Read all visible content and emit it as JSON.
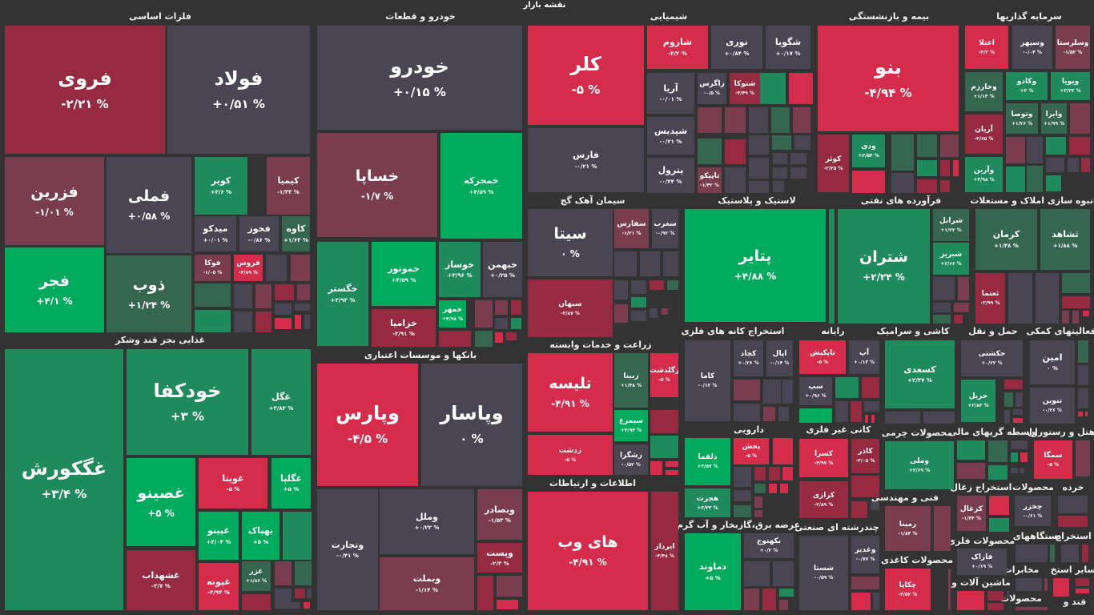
{
  "title": "نقشه بازار",
  "colors": {
    "g3": "#00ab5e",
    "g2": "#1f8a5c",
    "g1": "#356650",
    "n": "#4a4552",
    "r1": "#7a3d4f",
    "r2": "#962a41",
    "r3": "#d52c4b"
  },
  "sectors": [
    "فلزات اساسی",
    "غذایی بجز قند وشکر",
    "خودرو و قطعات",
    "بانکها و موسسات اعتباری",
    "شیمیایی",
    "بیمه و بازنشستگی",
    "سرمایه گذاریها",
    "سیمان آهک گچ",
    "زراعت و خدمات وابسته",
    "اطلاعات و ارتباطات",
    "لاستیک و پلاستیک",
    "فرآورده های نفتی",
    "انبوه سازی املاک و مستغلات",
    "استخراج کانه های فلزی",
    "رایانه",
    "کاشی و سرامیک",
    "حمل و نقل",
    "فعالیتهای کمکی",
    "دارویی",
    "کانی غیر فلزی",
    "عرضه برق،گازبخار و آب گرم",
    "چندرشته ای صنعتی",
    "محصولات چرمی",
    "فنی و مهندسی",
    "محصولات کاغذی",
    "واسطه گریهای مالی",
    "هتل و رستوران",
    "استخراج زغال",
    "محصولات",
    "خرده",
    "دستگاههای",
    "استخراج",
    "محصولات فلزی",
    "مخابرات",
    "سایر استخ",
    "ماشین آلات و",
    "محصولات",
    "قند و"
  ],
  "tiles": [
    {
      "symbol": "فروی",
      "change": "-۲/۲۱ %",
      "color": "r2"
    },
    {
      "symbol": "فولاد",
      "change": "+۰/۵۱ %",
      "color": "n"
    },
    {
      "symbol": "فزرین",
      "change": "-۱/۰۱ %",
      "color": "r1"
    },
    {
      "symbol": "فملی",
      "change": "+۰/۵۸ %",
      "color": "n"
    },
    {
      "symbol": "کویر",
      "change": "+۳/۶ %",
      "color": "g2"
    },
    {
      "symbol": "کیمیا",
      "change": "-۱/۳۳ %",
      "color": "r1"
    },
    {
      "symbol": "میدکو",
      "change": "+۰/۰۱ %",
      "color": "n"
    },
    {
      "symbol": "فخوز",
      "change": "-۰/۸۶ %",
      "color": "n"
    },
    {
      "symbol": "کاوه",
      "change": "+۱/۶۳ %",
      "color": "g1"
    },
    {
      "symbol": "فجر",
      "change": "+۴/۱ %",
      "color": "g3"
    },
    {
      "symbol": "ذوب",
      "change": "+۱/۲۴ %",
      "color": "g1"
    },
    {
      "symbol": "فوکا",
      "change": "-۱/۰۵ %",
      "color": "r1"
    },
    {
      "symbol": "فروس",
      "change": "-۴/۸۹ %",
      "color": "r3"
    },
    {
      "symbol": "غگکورش",
      "change": "+۳/۴ %",
      "color": "g2"
    },
    {
      "symbol": "خودکفا",
      "change": "+۳ %",
      "color": "g2"
    },
    {
      "symbol": "غگل",
      "change": "+۳/۸۲ %",
      "color": "g2"
    },
    {
      "symbol": "غصینو",
      "change": "+۵ %",
      "color": "g3"
    },
    {
      "symbol": "غشهداب",
      "change": "-۳/۷ %",
      "color": "r2"
    },
    {
      "symbol": "غویتا",
      "change": "-۵ %",
      "color": "r3"
    },
    {
      "symbol": "غگلپا",
      "change": "+۵ %",
      "color": "g3"
    },
    {
      "symbol": "غپینو",
      "change": "+۴/۰۴ %",
      "color": "g3"
    },
    {
      "symbol": "بهپاک",
      "change": "+۵ %",
      "color": "g3"
    },
    {
      "symbol": "غپونه",
      "change": "-۴/۹۴ %",
      "color": "r3"
    },
    {
      "symbol": "غزر",
      "change": "+۱/۸۶ %",
      "color": "g1"
    },
    {
      "symbol": "خودرو",
      "change": "+۰/۱۵ %",
      "color": "n"
    },
    {
      "symbol": "خساپا",
      "change": "-۱/۷ %",
      "color": "r1"
    },
    {
      "symbol": "خمحرکه",
      "change": "+۴/۵۹ %",
      "color": "g3"
    },
    {
      "symbol": "خگستر",
      "change": "+۳/۹۳ %",
      "color": "g2"
    },
    {
      "symbol": "خموتور",
      "change": "+۴/۵۹ %",
      "color": "g3"
    },
    {
      "symbol": "خوساز",
      "change": "+۳/۹۶ %",
      "color": "g2"
    },
    {
      "symbol": "خبهمن",
      "change": "+۰/۲۵ %",
      "color": "n"
    },
    {
      "symbol": "خزامیا",
      "change": "-۲/۹۱ %",
      "color": "r2"
    },
    {
      "symbol": "خمهر",
      "change": "+۴/۹۸ %",
      "color": "g3"
    },
    {
      "symbol": "وپارس",
      "change": "-۴/۵ %",
      "color": "r3"
    },
    {
      "symbol": "وپاسار",
      "change": "۰ %",
      "color": "n"
    },
    {
      "symbol": "وتجارت",
      "change": "-۰/۴۱ %",
      "color": "n"
    },
    {
      "symbol": "وملل",
      "change": "+۰/۲۲ %",
      "color": "n"
    },
    {
      "symbol": "وبملت",
      "change": "-۱/۱۴ %",
      "color": "r1"
    },
    {
      "symbol": "وبصادر",
      "change": "-۱/۵۳ %",
      "color": "r1"
    },
    {
      "symbol": "وپست",
      "change": "-۲/۳ %",
      "color": "r2"
    },
    {
      "symbol": "کلر",
      "change": "-۵ %",
      "color": "r3"
    },
    {
      "symbol": "فارس",
      "change": "-۰/۲۱ %",
      "color": "n"
    },
    {
      "symbol": "شاروم",
      "change": "-۴/۲ %",
      "color": "r3"
    },
    {
      "symbol": "نوری",
      "change": "+۰/۸۴ %",
      "color": "n"
    },
    {
      "symbol": "شگویا",
      "change": "+۰/۱۷ %",
      "color": "n"
    },
    {
      "symbol": "آریا",
      "change": "-۰/۰۱ %",
      "color": "n"
    },
    {
      "symbol": "شپدیس",
      "change": "-۰/۲۱ %",
      "color": "n"
    },
    {
      "symbol": "پترول",
      "change": "-۰/۴۴ %",
      "color": "n"
    },
    {
      "symbol": "زاگرس",
      "change": "-۰/۵ %",
      "color": "n"
    },
    {
      "symbol": "شتوکا",
      "change": "-۳/۴۹ %",
      "color": "r2"
    },
    {
      "symbol": "تاپیکو",
      "change": "-۱/۴۲ %",
      "color": "r1"
    },
    {
      "symbol": "بنو",
      "change": "-۴/۹۴ %",
      "color": "r3"
    },
    {
      "symbol": "کوثر",
      "change": "-۲/۲۵ %",
      "color": "r2"
    },
    {
      "symbol": "ودی",
      "change": "+۲/۵۴ %",
      "color": "g2"
    },
    {
      "symbol": "اعتلا",
      "change": "-۴/۳ %",
      "color": "r3"
    },
    {
      "symbol": "وسپهر",
      "change": "-۰/۰۴ %",
      "color": "n"
    },
    {
      "symbol": "وسلرستا",
      "change": "-۱/۵۲ %",
      "color": "r1"
    },
    {
      "symbol": "وخارزم",
      "change": "+۱/۱۴ %",
      "color": "g1"
    },
    {
      "symbol": "وکادو",
      "change": "+۳ %",
      "color": "g2"
    },
    {
      "symbol": "ویویا",
      "change": "+۳/۳۳ %",
      "color": "g2"
    },
    {
      "symbol": "وتوصا",
      "change": "+۱/۲۶ %",
      "color": "g1"
    },
    {
      "symbol": "وایرا",
      "change": "+۱/۹۹ %",
      "color": "g1"
    },
    {
      "symbol": "آریان",
      "change": "-۳/۶۵ %",
      "color": "r2"
    },
    {
      "symbol": "وآرین",
      "change": "+۳/۹۸ %",
      "color": "g2"
    },
    {
      "symbol": "سیتا",
      "change": "۰ %",
      "color": "n"
    },
    {
      "symbol": "سبهان",
      "change": "-۳/۸۷ %",
      "color": "r2"
    },
    {
      "symbol": "سفارس",
      "change": "-۱/۲۱ %",
      "color": "r1"
    },
    {
      "symbol": "سغرب",
      "change": "-۰/۹۲ %",
      "color": "n"
    },
    {
      "symbol": "تلیسه",
      "change": "-۴/۹۱ %",
      "color": "r3"
    },
    {
      "symbol": "زدشت",
      "change": "-۵ %",
      "color": "r3"
    },
    {
      "symbol": "زبینا",
      "change": "+۱/۴۸ %",
      "color": "g1"
    },
    {
      "symbol": "زگلدشت",
      "change": "-۵ %",
      "color": "r3"
    },
    {
      "symbol": "سیمرغ",
      "change": "+۴/۹۴ %",
      "color": "g3"
    },
    {
      "symbol": "زشگزا",
      "change": "-۰/۵۲ %",
      "color": "n"
    },
    {
      "symbol": "های وب",
      "change": "-۴/۹۱ %",
      "color": "r3"
    },
    {
      "symbol": "ایرداز",
      "change": "-۳/۴۸ %",
      "color": "r2"
    },
    {
      "symbol": "پتایر",
      "change": "+۴/۸۸ %",
      "color": "g3"
    },
    {
      "symbol": "شتران",
      "change": "+۲/۲۴ %",
      "color": "g2"
    },
    {
      "symbol": "شرانل",
      "change": "+۱/۲۲ %",
      "color": "g1"
    },
    {
      "symbol": "شبریز",
      "change": "+۲/۶۶ %",
      "color": "g2"
    },
    {
      "symbol": "کرمان",
      "change": "+۱/۴۸ %",
      "color": "g1"
    },
    {
      "symbol": "ثشاهد",
      "change": "+۱/۸۸ %",
      "color": "g1"
    },
    {
      "symbol": "ثعتما",
      "change": "-۲/۹۹ %",
      "color": "r2"
    },
    {
      "symbol": "کاما",
      "change": "-۰/۱۲ %",
      "color": "n"
    },
    {
      "symbol": "کچاد",
      "change": "+۰/۲۶ %",
      "color": "n"
    },
    {
      "symbol": "اپال",
      "change": "-۰/۱۴ %",
      "color": "n"
    },
    {
      "symbol": "تاپکیش",
      "change": "-۵ %",
      "color": "r3"
    },
    {
      "symbol": "آپ",
      "change": "+۰/۱۳ %",
      "color": "n"
    },
    {
      "symbol": "سپ",
      "change": "+۰/۹۶ %",
      "color": "n"
    },
    {
      "symbol": "کسعدی",
      "change": "+۳/۳۷ %",
      "color": "g2"
    },
    {
      "symbol": "حکشتی",
      "change": "+۰/۲۲ %",
      "color": "n"
    },
    {
      "symbol": "حریل",
      "change": "+۲/۸۲ %",
      "color": "g2"
    },
    {
      "symbol": "امین",
      "change": "۰ %",
      "color": "n"
    },
    {
      "symbol": "تنوین",
      "change": "-۰/۲۶ %",
      "color": "n"
    },
    {
      "symbol": "دلقما",
      "change": "+۴/۵۷ %",
      "color": "g3"
    },
    {
      "symbol": "هجرت",
      "change": "+۳/۳۳ %",
      "color": "g2"
    },
    {
      "symbol": "پخش",
      "change": "-۵ %",
      "color": "r3"
    },
    {
      "symbol": "کسرا",
      "change": "-۴/۹۷ %",
      "color": "r3"
    },
    {
      "symbol": "کاذر",
      "change": "-۳/۰۵ %",
      "color": "r2"
    },
    {
      "symbol": "کرازی",
      "change": "-۲/۸۹ %",
      "color": "r2"
    },
    {
      "symbol": "دماوند",
      "change": "+۵ %",
      "color": "g3"
    },
    {
      "symbol": "بکهنوج",
      "change": "+۰/۲ %",
      "color": "n"
    },
    {
      "symbol": "شستا",
      "change": "-۰/۵۹ %",
      "color": "n"
    },
    {
      "symbol": "وغدیر",
      "change": "-۰/۷۷ %",
      "color": "n"
    },
    {
      "symbol": "وملی",
      "change": "+۲/۶۹ %",
      "color": "g2"
    },
    {
      "symbol": "رمپنا",
      "change": "-۱/۸۴ %",
      "color": "r1"
    },
    {
      "symbol": "چکاپا",
      "change": "-۴/۵۲ %",
      "color": "r3"
    },
    {
      "symbol": "سمگا",
      "change": "-۵ %",
      "color": "r3"
    },
    {
      "symbol": "کزغال",
      "change": "-۱/۴۴ %",
      "color": "r1"
    },
    {
      "symbol": "چخزر",
      "change": "-۰/۶۱ %",
      "color": "n"
    },
    {
      "symbol": "فاراک",
      "change": "+۰/۱۹ %",
      "color": "n"
    }
  ]
}
